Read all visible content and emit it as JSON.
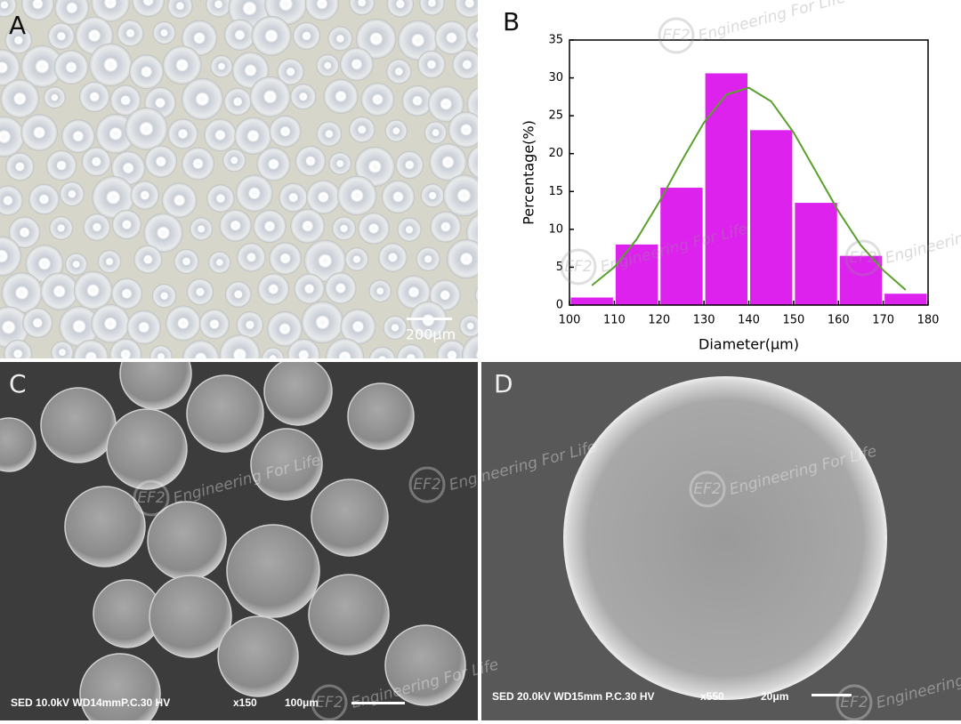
{
  "panels": {
    "A": {
      "label": "A",
      "scale": "200μm"
    },
    "C": {
      "label": "C",
      "info": "SED 10.0kV WD14mmP.C.30 HV",
      "magnification": "x150",
      "scale": "100μm"
    },
    "D": {
      "label": "D",
      "info": "SED 20.0kV WD15mm P.C.30 HV",
      "magnification": "x550",
      "scale": "20μm"
    }
  },
  "watermark": {
    "logo": "EF2",
    "text": "Engineering For Life"
  },
  "chart_data": {
    "type": "histogram",
    "label": "B",
    "x_label": "Diameter(μm)",
    "y_label": "Percentage(%)",
    "bins": [
      100,
      110,
      120,
      130,
      140,
      150,
      160,
      170,
      180
    ],
    "values": [
      1,
      8,
      15.5,
      30.6,
      23.1,
      13.5,
      6.5,
      1.5
    ],
    "color": "#dd22ee",
    "fit_curve": {
      "color": "#5aa02c",
      "x": [
        105,
        110,
        115,
        120,
        125,
        130,
        135,
        140,
        145,
        150,
        155,
        160,
        165,
        170,
        175
      ],
      "values": [
        2.6,
        5.0,
        8.7,
        13.6,
        19.0,
        24.1,
        27.8,
        28.7,
        26.9,
        22.8,
        17.6,
        12.4,
        7.9,
        4.6,
        2.0
      ]
    },
    "xlim": [
      100,
      180
    ],
    "xticks": [
      100,
      110,
      120,
      130,
      140,
      150,
      160,
      170,
      180
    ],
    "ylim": [
      0,
      35
    ],
    "yticks": [
      0,
      5,
      10,
      15,
      20,
      25,
      30,
      35
    ]
  }
}
